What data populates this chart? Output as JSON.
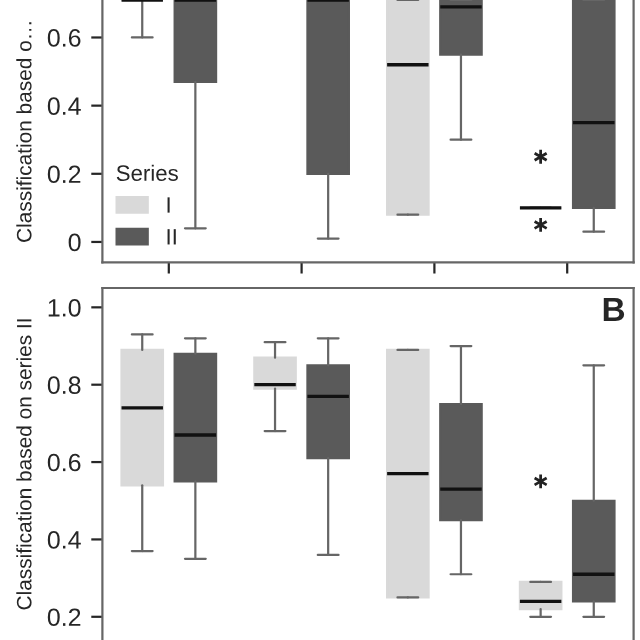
{
  "chart_data": [
    {
      "type": "box",
      "ylabel": "Classification based o…",
      "categories": [
        null,
        null,
        null,
        null
      ],
      "ylim": [
        -0.06,
        0.71
      ],
      "yticks": [
        0,
        0.2,
        0.4,
        0.6
      ],
      "tick_labels": "y",
      "grid": false,
      "legend": "bottom left",
      "legend_title": "Series",
      "series": [
        {
          "name": "I",
          "color": "#d9d9d9",
          "boxes": [
            {
              "low": 0.6,
              "q1": 0.71,
              "median": 0.71,
              "q3": 0.71,
              "high": 0.71
            },
            null,
            {
              "low": 0.08,
              "q1": 0.08,
              "median": 0.52,
              "q3": 0.71,
              "high": 0.71
            },
            {
              "low": 0.1,
              "q1": 0.1,
              "median": 0.1,
              "q3": 0.1,
              "high": 0.1,
              "outliers": [
                0.25,
                0.05
              ]
            }
          ]
        },
        {
          "name": "II",
          "color": "#5a5a5a",
          "boxes": [
            {
              "low": 0.04,
              "q1": 0.47,
              "median": 0.71,
              "q3": 0.71,
              "high": 0.71
            },
            {
              "low": 0.01,
              "q1": 0.2,
              "median": 0.71,
              "q3": 0.71,
              "high": 0.71
            },
            {
              "low": 0.3,
              "q1": 0.55,
              "median": 0.69,
              "q3": 0.71,
              "high": 0.71
            },
            {
              "low": 0.03,
              "q1": 0.1,
              "median": 0.35,
              "q3": 0.71,
              "high": 0.71
            }
          ]
        }
      ]
    },
    {
      "type": "box",
      "ylabel": "Classification based on series II",
      "categories": [
        null,
        null,
        null,
        null
      ],
      "ylim": [
        0.14,
        1.05
      ],
      "yticks": [
        0.2,
        0.4,
        0.6,
        0.8,
        {
          "value": 1,
          "label": "1.0"
        }
      ],
      "tick_labels": "y",
      "grid": false,
      "legend": false,
      "annotations": [
        "B"
      ],
      "series": [
        {
          "color": "#d9d9d9",
          "boxes": [
            {
              "low": 0.37,
              "q1": 0.54,
              "median": 0.74,
              "q3": 0.89,
              "high": 0.93
            },
            {
              "low": 0.68,
              "q1": 0.79,
              "median": 0.8,
              "q3": 0.87,
              "high": 0.91
            },
            {
              "low": 0.25,
              "q1": 0.25,
              "median": 0.57,
              "q3": 0.89,
              "high": 0.89
            },
            {
              "low": 0.2,
              "q1": 0.22,
              "median": 0.24,
              "q3": 0.29,
              "high": 0.29,
              "outliers": [
                0.55
              ]
            }
          ]
        },
        {
          "color": "#5a5a5a",
          "boxes": [
            {
              "low": 0.35,
              "q1": 0.55,
              "median": 0.67,
              "q3": 0.88,
              "high": 0.92
            },
            {
              "low": 0.36,
              "q1": 0.61,
              "median": 0.77,
              "q3": 0.85,
              "high": 0.92
            },
            {
              "low": 0.31,
              "q1": 0.45,
              "median": 0.53,
              "q3": 0.75,
              "high": 0.9
            },
            {
              "low": 0.2,
              "q1": 0.24,
              "median": 0.31,
              "q3": 0.5,
              "high": 0.85
            }
          ]
        }
      ]
    }
  ]
}
